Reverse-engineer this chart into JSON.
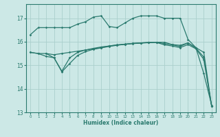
{
  "xlabel": "Humidex (Indice chaleur)",
  "bg_color": "#cce8e6",
  "grid_color": "#aacfcc",
  "line_color": "#2a7a6e",
  "xlim": [
    -0.5,
    23.5
  ],
  "ylim": [
    13.0,
    17.6
  ],
  "yticks": [
    13,
    14,
    15,
    16,
    17
  ],
  "xticks": [
    0,
    1,
    2,
    3,
    4,
    5,
    6,
    7,
    8,
    9,
    10,
    11,
    12,
    13,
    14,
    15,
    16,
    17,
    18,
    19,
    20,
    21,
    22,
    23
  ],
  "curve1_x": [
    0,
    1,
    2,
    3,
    4,
    5,
    6,
    7,
    8,
    9,
    10,
    11,
    12,
    13,
    14,
    15,
    16,
    17,
    18,
    19,
    20,
    21,
    22,
    23
  ],
  "curve1_y": [
    16.3,
    16.6,
    16.6,
    16.6,
    16.6,
    16.6,
    16.75,
    16.85,
    17.05,
    17.1,
    16.65,
    16.6,
    16.8,
    17.0,
    17.1,
    17.1,
    17.1,
    17.0,
    17.0,
    17.0,
    16.1,
    15.75,
    14.65,
    13.3
  ],
  "curve2_x": [
    0,
    1,
    2,
    3,
    4,
    5,
    6,
    7,
    8,
    9,
    10,
    11,
    12,
    13,
    14,
    15,
    16,
    17,
    18,
    19,
    20,
    21,
    22,
    23
  ],
  "curve2_y": [
    15.55,
    15.5,
    15.5,
    15.45,
    15.5,
    15.55,
    15.6,
    15.65,
    15.7,
    15.75,
    15.82,
    15.87,
    15.9,
    15.93,
    15.95,
    15.97,
    15.98,
    15.98,
    15.88,
    15.85,
    15.95,
    15.75,
    15.55,
    13.25
  ],
  "curve3_x": [
    0,
    1,
    2,
    3,
    4,
    5,
    6,
    7,
    8,
    9,
    10,
    11,
    12,
    13,
    14,
    15,
    16,
    17,
    18,
    19,
    20,
    21,
    22,
    23
  ],
  "curve3_y": [
    15.55,
    15.5,
    15.38,
    15.32,
    14.72,
    15.08,
    15.42,
    15.58,
    15.68,
    15.74,
    15.8,
    15.85,
    15.89,
    15.93,
    15.95,
    15.97,
    15.98,
    15.92,
    15.87,
    15.8,
    15.95,
    15.73,
    15.35,
    13.25
  ],
  "curve4_x": [
    2,
    3,
    4,
    5,
    6,
    7,
    8,
    9,
    10,
    11,
    12,
    13,
    14,
    15,
    16,
    17,
    18,
    19,
    20,
    21,
    22,
    23
  ],
  "curve4_y": [
    15.5,
    15.32,
    14.75,
    15.32,
    15.55,
    15.65,
    15.72,
    15.78,
    15.82,
    15.86,
    15.89,
    15.92,
    15.94,
    15.96,
    15.97,
    15.87,
    15.82,
    15.75,
    15.88,
    15.7,
    15.25,
    13.25
  ]
}
